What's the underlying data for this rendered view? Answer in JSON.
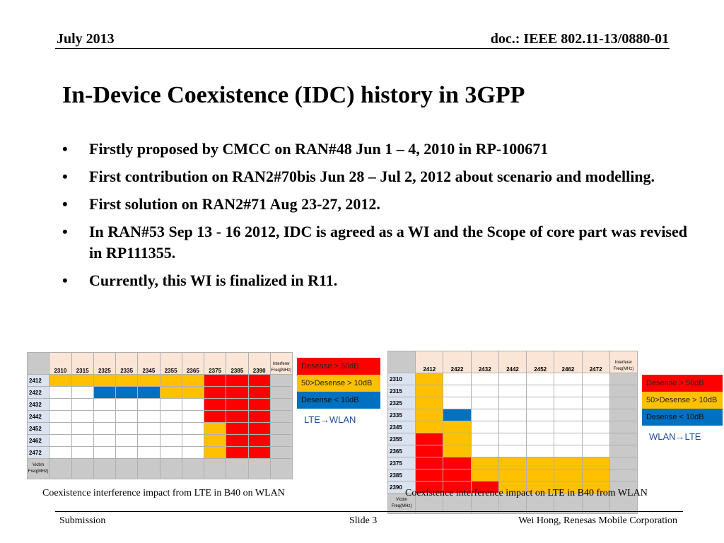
{
  "header": {
    "date": "July 2013",
    "doc": "doc.: IEEE 802.11-13/0880-01"
  },
  "title": "In-Device Coexistence (IDC) history in 3GPP",
  "bullet_char": "•",
  "bullets": [
    "Firstly proposed by CMCC on RAN#48 Jun 1 – 4, 2010 in RP-100671",
    "First contribution on RAN2#70bis Jun 28 – Jul 2, 2012 about scenario and modelling.",
    "First solution on RAN2#71 Aug 23-27, 2012.",
    "In RAN#53 Sep 13 - 16 2012, IDC is agreed as a WI and the Scope of core part was revised in RP111355.",
    "Currently, this WI is finalized in R11."
  ],
  "legend": {
    "red": {
      "label": "Desense > 50dB",
      "color": "#ff0000"
    },
    "yellow": {
      "label": "50>Desense > 10dB",
      "color": "#ffc000"
    },
    "blue": {
      "label": "Desense < 10dB",
      "color": "#0070c0"
    }
  },
  "table_left": {
    "columns": [
      "2310",
      "2315",
      "2325",
      "2335",
      "2345",
      "2355",
      "2365",
      "2375",
      "2385",
      "2390"
    ],
    "interferer_label": "Interferer Freq(MHz)",
    "victim_label": "Victim Freq(MHz)",
    "rows": [
      {
        "label": "2412",
        "cells": [
          "Y",
          "Y",
          "Y",
          "Y",
          "Y",
          "Y",
          "Y",
          "R",
          "R",
          "R"
        ]
      },
      {
        "label": "2422",
        "cells": [
          "W",
          "W",
          "B",
          "B",
          "B",
          "Y",
          "Y",
          "R",
          "R",
          "R"
        ]
      },
      {
        "label": "2432",
        "cells": [
          "W",
          "W",
          "W",
          "W",
          "W",
          "W",
          "W",
          "R",
          "R",
          "R"
        ]
      },
      {
        "label": "2442",
        "cells": [
          "W",
          "W",
          "W",
          "W",
          "W",
          "W",
          "W",
          "R",
          "R",
          "R"
        ]
      },
      {
        "label": "2452",
        "cells": [
          "W",
          "W",
          "W",
          "W",
          "W",
          "W",
          "W",
          "Y",
          "R",
          "R"
        ]
      },
      {
        "label": "2462",
        "cells": [
          "W",
          "W",
          "W",
          "W",
          "W",
          "W",
          "W",
          "Y",
          "R",
          "R"
        ]
      },
      {
        "label": "2472",
        "cells": [
          "W",
          "W",
          "W",
          "W",
          "W",
          "W",
          "W",
          "Y",
          "R",
          "R"
        ]
      }
    ],
    "direction": "LTE→WLAN",
    "caption": "Coexistence interference impact from LTE in B40 on WLAN"
  },
  "table_right": {
    "columns": [
      "2412",
      "2422",
      "2432",
      "2442",
      "2452",
      "2462",
      "2472"
    ],
    "interferer_label": "Interferer Freq(MHz)",
    "victim_label": "Victim Freq(MHz)",
    "rows": [
      {
        "label": "2310",
        "cells": [
          "Y",
          "W",
          "W",
          "W",
          "W",
          "W",
          "W"
        ]
      },
      {
        "label": "2315",
        "cells": [
          "Y",
          "W",
          "W",
          "W",
          "W",
          "W",
          "W"
        ]
      },
      {
        "label": "2325",
        "cells": [
          "Y",
          "W",
          "W",
          "W",
          "W",
          "W",
          "W"
        ]
      },
      {
        "label": "2335",
        "cells": [
          "Y",
          "B",
          "W",
          "W",
          "W",
          "W",
          "W"
        ]
      },
      {
        "label": "2345",
        "cells": [
          "Y",
          "Y",
          "W",
          "W",
          "W",
          "W",
          "W"
        ]
      },
      {
        "label": "2355",
        "cells": [
          "R",
          "Y",
          "W",
          "W",
          "W",
          "W",
          "W"
        ]
      },
      {
        "label": "2365",
        "cells": [
          "R",
          "Y",
          "W",
          "W",
          "W",
          "W",
          "W"
        ]
      },
      {
        "label": "2375",
        "cells": [
          "R",
          "R",
          "Y",
          "Y",
          "Y",
          "Y",
          "Y"
        ]
      },
      {
        "label": "2385",
        "cells": [
          "R",
          "R",
          "Y",
          "Y",
          "Y",
          "Y",
          "Y"
        ]
      },
      {
        "label": "2390",
        "cells": [
          "R",
          "R",
          "R",
          "Y",
          "Y",
          "Y",
          "Y"
        ]
      }
    ],
    "direction": "WLAN→LTE",
    "caption": "Coexistence interference impact on LTE in B40 from WLAN"
  },
  "footer": {
    "left": "Submission",
    "center": "Slide 3",
    "right": "Wei Hong, Renesas Mobile Corporation"
  }
}
